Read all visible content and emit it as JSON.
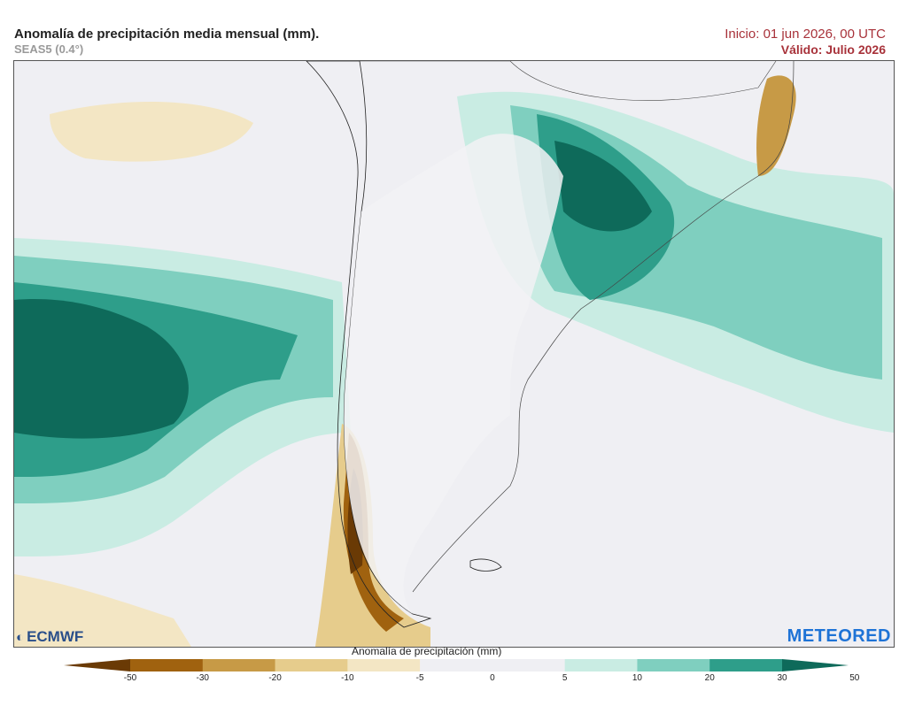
{
  "header": {
    "title": "Anomalía de precipitación media mensual (mm).",
    "model": "SEAS5 (0.4°)",
    "init": "Inicio: 01 jun 2026, 00 UTC",
    "valid": "Válido: Julio 2026"
  },
  "logos": {
    "left": "ECMWF",
    "right": "METEORED"
  },
  "colorbar": {
    "title": "Anomalía de precipitación (mm)",
    "ticks": [
      "-50",
      "-30",
      "-20",
      "-10",
      "-5",
      "0",
      "5",
      "10",
      "20",
      "30",
      "50"
    ],
    "colors": [
      "#6a3a05",
      "#a0620f",
      "#c79a46",
      "#e6cc8c",
      "#f3e6c4",
      "#efeff3",
      "#efeff3",
      "#c9ece3",
      "#7fcfbf",
      "#2e9e8a",
      "#0e6a5a"
    ]
  }
}
